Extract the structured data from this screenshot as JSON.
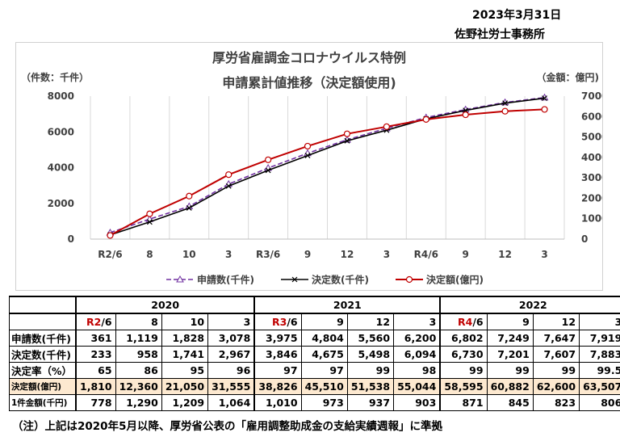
{
  "header": {
    "date": "2023年3月31日",
    "firm": "佐野社労士事務所"
  },
  "chart_data": {
    "type": "line",
    "title": "厚労省雇調金コロナウイルス特例",
    "subtitle": "申請累計値推移（決定額使用)",
    "y_left_label": "（件数：千件）",
    "y_right_label": "（金額：億円)",
    "categories": [
      "R2/6",
      "8",
      "10",
      "3",
      "R3/6",
      "9",
      "12",
      "3",
      "R4/6",
      "9",
      "12",
      "3"
    ],
    "ylim_left": [
      0,
      8000
    ],
    "ylim_right": [
      0,
      70000
    ],
    "y_left_ticks": [
      "0",
      "2000",
      "4000",
      "6000",
      "8000"
    ],
    "y_right_ticks": [
      "0",
      "10000",
      "20000",
      "30000",
      "40000",
      "50000",
      "60000",
      "70000"
    ],
    "grid": "vertical",
    "legend_position": "bottom",
    "series": [
      {
        "name": "申請数(千件)",
        "axis": "left",
        "color": "#7030a0",
        "marker": "triangle",
        "dash": true,
        "values": [
          361,
          1119,
          1828,
          3078,
          3975,
          4804,
          5560,
          6200,
          6802,
          7249,
          7647,
          7919
        ]
      },
      {
        "name": "決定数(千件)",
        "axis": "left",
        "color": "#000000",
        "marker": "x",
        "dash": false,
        "values": [
          233,
          958,
          1741,
          2967,
          3846,
          4675,
          5498,
          6094,
          6730,
          7201,
          7607,
          7883
        ]
      },
      {
        "name": "決定額(億円)",
        "axis": "right",
        "color": "#c00000",
        "marker": "circle",
        "dash": false,
        "values": [
          1810,
          12360,
          21050,
          31555,
          38826,
          45510,
          51538,
          55044,
          58595,
          60882,
          62600,
          63507
        ]
      }
    ]
  },
  "table": {
    "years": [
      "2020",
      "2021",
      "2022"
    ],
    "months": [
      {
        "era": "R2",
        "rest": "/6"
      },
      {
        "era": "",
        "rest": "8"
      },
      {
        "era": "",
        "rest": "10"
      },
      {
        "era": "",
        "rest": "3"
      },
      {
        "era": "R3",
        "rest": "/6"
      },
      {
        "era": "",
        "rest": "9"
      },
      {
        "era": "",
        "rest": "12"
      },
      {
        "era": "",
        "rest": "3"
      },
      {
        "era": "R4",
        "rest": "/6"
      },
      {
        "era": "",
        "rest": "9"
      },
      {
        "era": "",
        "rest": "12"
      },
      {
        "era": "",
        "rest": "3"
      }
    ],
    "rows": [
      {
        "label": "申請数(千件)",
        "cls": "",
        "values": [
          "361",
          "1,119",
          "1,828",
          "3,078",
          "3,975",
          "4,804",
          "5,560",
          "6,200",
          "6,802",
          "7,249",
          "7,647",
          "7,919"
        ]
      },
      {
        "label": "決定数(千件)",
        "cls": "",
        "values": [
          "233",
          "958",
          "1,741",
          "2,967",
          "3,846",
          "4,675",
          "5,498",
          "6,094",
          "6,730",
          "7,201",
          "7,607",
          "7,883"
        ]
      },
      {
        "label": "決定率（%）",
        "cls": "",
        "values": [
          "65",
          "86",
          "95",
          "96",
          "97",
          "97",
          "99",
          "98",
          "99",
          "99",
          "99",
          "99.5"
        ]
      },
      {
        "label": "決定額(億円)",
        "cls": "amt",
        "values": [
          "1,810",
          "12,360",
          "21,050",
          "31,555",
          "38,826",
          "45,510",
          "51,538",
          "55,044",
          "58,595",
          "60,882",
          "62,600",
          "63,507"
        ]
      },
      {
        "label": "1件金額(千円)",
        "cls": "per",
        "values": [
          "778",
          "1,290",
          "1,209",
          "1,064",
          "1,010",
          "973",
          "937",
          "903",
          "871",
          "845",
          "823",
          "806"
        ]
      }
    ]
  },
  "footnote": "（注）上記は2020年5月以降、厚労省公表の「雇用調整助成金の支給実績週報」に準拠"
}
